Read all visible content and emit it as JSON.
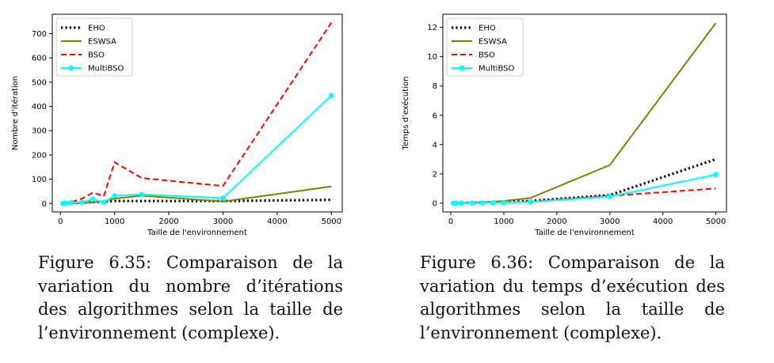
{
  "figures": [
    {
      "caption": "Figure 6.35:  Comparaison de la variation du nombre d’itérations des algorithmes selon la taille de l’environnement (complexe).",
      "chart_data": {
        "type": "line",
        "xlabel": "Taille de l'environnement",
        "ylabel": "Nombre d'itération",
        "xlim": [
          -150,
          5200
        ],
        "ylim": [
          -35,
          780
        ],
        "xticks": [
          0,
          1000,
          2000,
          3000,
          4000,
          5000
        ],
        "yticks": [
          0,
          100,
          200,
          300,
          400,
          500,
          600,
          700
        ],
        "grid": false,
        "legend": "top-left",
        "series": [
          {
            "name": "EHO",
            "color": "#000000",
            "style": "dotted",
            "marker": false,
            "x": [
              50,
              100,
              200,
              400,
              600,
              800,
              1000,
              1500,
              3000,
              5000
            ],
            "y": [
              1,
              1,
              2,
              3,
              5,
              8,
              10,
              10,
              10,
              15
            ]
          },
          {
            "name": "ESWSA",
            "color": "#808000",
            "style": "solid",
            "marker": false,
            "x": [
              50,
              100,
              200,
              400,
              600,
              800,
              1000,
              1500,
              3000,
              5000
            ],
            "y": [
              0,
              0,
              1,
              2,
              5,
              10,
              20,
              32,
              8,
              70
            ]
          },
          {
            "name": "BSO",
            "color": "#ff0000",
            "style": "dashed",
            "marker": false,
            "x": [
              50,
              100,
              200,
              400,
              600,
              800,
              1000,
              1500,
              3000,
              5000
            ],
            "y": [
              0,
              2,
              5,
              20,
              45,
              30,
              170,
              105,
              72,
              745
            ]
          },
          {
            "name": "MultiBSO",
            "color": "#00ffff",
            "style": "solid",
            "marker": true,
            "x": [
              50,
              100,
              200,
              400,
              600,
              800,
              1000,
              1500,
              3000,
              5000
            ],
            "y": [
              0,
              1,
              3,
              5,
              18,
              5,
              32,
              37,
              22,
              445
            ]
          }
        ]
      }
    },
    {
      "caption": "Figure 6.36:  Comparaison de la variation du temps d’exécution des algorithmes selon la taille de l’environnement (complexe).",
      "chart_data": {
        "type": "line",
        "xlabel": "Taille de l'environnement",
        "ylabel": "Temps d'exécution",
        "xlim": [
          -150,
          5200
        ],
        "ylim": [
          -0.6,
          12.9
        ],
        "xticks": [
          0,
          1000,
          2000,
          3000,
          4000,
          5000
        ],
        "yticks": [
          0,
          2,
          4,
          6,
          8,
          10,
          12
        ],
        "grid": false,
        "legend": "top-left",
        "series": [
          {
            "name": "EHO",
            "color": "#000000",
            "style": "dotted",
            "marker": false,
            "x": [
              50,
              100,
              200,
              400,
              600,
              800,
              1000,
              1500,
              3000,
              5000
            ],
            "y": [
              0.0,
              0.0,
              0.01,
              0.02,
              0.04,
              0.06,
              0.08,
              0.15,
              0.55,
              3.0
            ]
          },
          {
            "name": "ESWSA",
            "color": "#808000",
            "style": "solid",
            "marker": false,
            "x": [
              50,
              100,
              200,
              400,
              600,
              800,
              1000,
              1500,
              3000,
              5000
            ],
            "y": [
              0.0,
              0.0,
              0.01,
              0.03,
              0.06,
              0.1,
              0.15,
              0.35,
              2.6,
              12.3
            ]
          },
          {
            "name": "BSO",
            "color": "#ff0000",
            "style": "dashed",
            "marker": false,
            "x": [
              50,
              100,
              200,
              400,
              600,
              800,
              1000,
              1500,
              3000,
              5000
            ],
            "y": [
              0.0,
              0.0,
              0.0,
              0.01,
              0.02,
              0.03,
              0.05,
              0.1,
              0.5,
              1.0
            ]
          },
          {
            "name": "MultiBSO",
            "color": "#00ffff",
            "style": "solid",
            "marker": true,
            "x": [
              50,
              100,
              200,
              400,
              600,
              800,
              1000,
              1500,
              3000,
              5000
            ],
            "y": [
              0.0,
              0.0,
              0.0,
              0.01,
              0.02,
              0.03,
              0.04,
              0.08,
              0.45,
              1.95
            ]
          }
        ]
      }
    }
  ]
}
